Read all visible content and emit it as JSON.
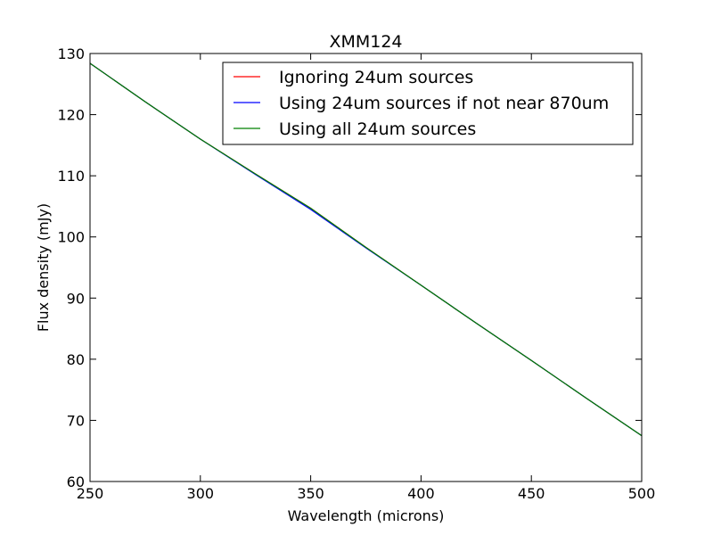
{
  "chart_data": {
    "type": "line",
    "title": "XMM124",
    "xlabel": "Wavelength (microns)",
    "ylabel": "Flux density (mJy)",
    "xlim": [
      250,
      500
    ],
    "ylim": [
      60,
      130
    ],
    "x_ticks": [
      250,
      300,
      350,
      400,
      450,
      500
    ],
    "y_ticks": [
      60,
      70,
      80,
      90,
      100,
      110,
      120,
      130
    ],
    "grid": false,
    "legend_position": "top-right",
    "series": [
      {
        "name": "Ignoring 24um sources",
        "color": "#ff0000",
        "x": [
          250,
          275,
          300,
          325,
          350,
          375,
          400,
          425,
          450,
          475,
          500
        ],
        "y": [
          128.4,
          122.1,
          116.0,
          110.3,
          104.7,
          98.3,
          92.1,
          85.9,
          79.8,
          73.6,
          67.5
        ]
      },
      {
        "name": "Using 24um sources if not near 870um",
        "color": "#0000ff",
        "x": [
          250,
          275,
          300,
          325,
          350,
          375,
          400,
          425,
          450,
          475,
          500
        ],
        "y": [
          128.4,
          122.1,
          116.0,
          110.2,
          104.5,
          98.2,
          92.1,
          85.9,
          79.8,
          73.6,
          67.5
        ]
      },
      {
        "name": "Using all 24um sources",
        "color": "#008000",
        "x": [
          250,
          275,
          300,
          325,
          350,
          375,
          400,
          425,
          450,
          475,
          500
        ],
        "y": [
          128.4,
          122.1,
          116.0,
          110.3,
          104.7,
          98.3,
          92.1,
          85.9,
          79.8,
          73.6,
          67.5
        ]
      }
    ]
  }
}
